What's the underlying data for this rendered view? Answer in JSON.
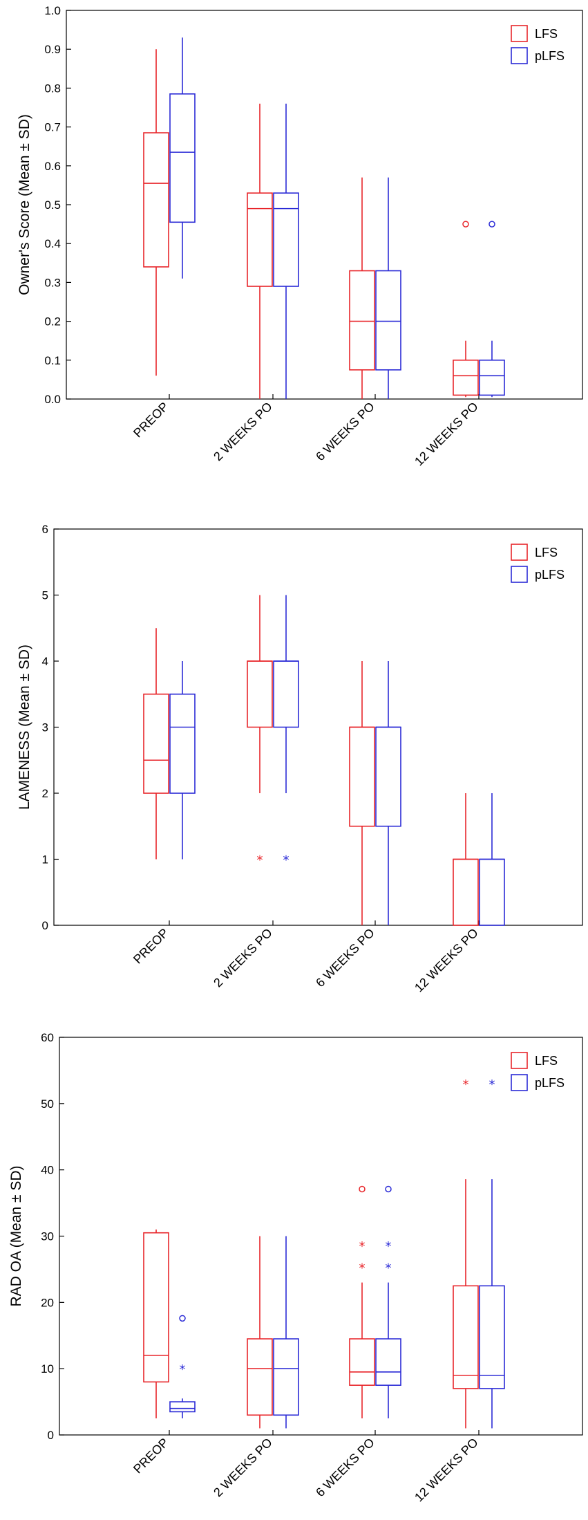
{
  "chart_data": [
    {
      "type": "boxplot",
      "ylabel": "Owner's Score (Mean ± SD)",
      "ylim": [
        0,
        1.0
      ],
      "yticks": [
        "0.0",
        "0.1",
        "0.2",
        "0.3",
        "0.4",
        "0.5",
        "0.6",
        "0.7",
        "0.8",
        "0.9",
        "1.0"
      ],
      "categories": [
        "PREOP",
        "2 WEEKS PO",
        "6 WEEKS PO",
        "12 WEEKS PO"
      ],
      "legend": {
        "position": "top-right",
        "entries": [
          "LFS",
          "pLFS"
        ]
      },
      "series": [
        {
          "name": "LFS",
          "color": "#e8262b",
          "boxes": [
            {
              "min": 0.06,
              "q1": 0.34,
              "median": 0.555,
              "q3": 0.685,
              "max": 0.9,
              "outliers": []
            },
            {
              "min": 0.0,
              "q1": 0.29,
              "median": 0.49,
              "q3": 0.53,
              "max": 0.76,
              "outliers": []
            },
            {
              "min": 0.0,
              "q1": 0.075,
              "median": 0.2,
              "q3": 0.33,
              "max": 0.57,
              "outliers": []
            },
            {
              "min": 0.005,
              "q1": 0.01,
              "median": 0.06,
              "q3": 0.1,
              "max": 0.15,
              "outliers": [
                {
                  "value": 0.45,
                  "symbol": "o"
                }
              ]
            }
          ]
        },
        {
          "name": "pLFS",
          "color": "#2b2bd6",
          "boxes": [
            {
              "min": 0.31,
              "q1": 0.455,
              "median": 0.635,
              "q3": 0.785,
              "max": 0.93,
              "outliers": []
            },
            {
              "min": 0.0,
              "q1": 0.29,
              "median": 0.49,
              "q3": 0.53,
              "max": 0.76,
              "outliers": []
            },
            {
              "min": 0.0,
              "q1": 0.075,
              "median": 0.2,
              "q3": 0.33,
              "max": 0.57,
              "outliers": []
            },
            {
              "min": 0.005,
              "q1": 0.01,
              "median": 0.06,
              "q3": 0.1,
              "max": 0.15,
              "outliers": [
                {
                  "value": 0.45,
                  "symbol": "o"
                }
              ]
            }
          ]
        }
      ]
    },
    {
      "type": "boxplot",
      "ylabel": "LAMENESS (Mean ± SD)",
      "ylim": [
        0,
        6
      ],
      "yticks": [
        "0",
        "1",
        "2",
        "3",
        "4",
        "5",
        "6"
      ],
      "categories": [
        "PREOP",
        "2 WEEKS PO",
        "6 WEEKS PO",
        "12 WEEKS PO"
      ],
      "legend": {
        "position": "top-right",
        "entries": [
          "LFS",
          "pLFS"
        ]
      },
      "series": [
        {
          "name": "LFS",
          "color": "#e8262b",
          "boxes": [
            {
              "min": 1,
              "q1": 2,
              "median": 2.5,
              "q3": 3.5,
              "max": 4.5,
              "outliers": []
            },
            {
              "min": 2,
              "q1": 3,
              "median": 4,
              "q3": 4,
              "max": 5,
              "outliers": [
                {
                  "value": 1,
                  "symbol": "*"
                }
              ]
            },
            {
              "min": 0,
              "q1": 1.5,
              "median": 3,
              "q3": 3,
              "max": 4,
              "outliers": []
            },
            {
              "min": 0,
              "q1": 0,
              "median": 1,
              "q3": 1,
              "max": 2,
              "outliers": []
            }
          ]
        },
        {
          "name": "pLFS",
          "color": "#2b2bd6",
          "boxes": [
            {
              "min": 1,
              "q1": 2,
              "median": 3,
              "q3": 3.5,
              "max": 4,
              "outliers": []
            },
            {
              "min": 2,
              "q1": 3,
              "median": 4,
              "q3": 4,
              "max": 5,
              "outliers": [
                {
                  "value": 1,
                  "symbol": "*"
                }
              ]
            },
            {
              "min": 0,
              "q1": 1.5,
              "median": 3,
              "q3": 3,
              "max": 4,
              "outliers": []
            },
            {
              "min": 0,
              "q1": 0,
              "median": 1,
              "q3": 1,
              "max": 2,
              "outliers": []
            }
          ]
        }
      ]
    },
    {
      "type": "boxplot",
      "ylabel": "RAD OA (Mean ± SD)",
      "ylim": [
        0,
        60
      ],
      "yticks": [
        "0",
        "10",
        "20",
        "30",
        "40",
        "50",
        "60"
      ],
      "categories": [
        "PREOP",
        "2 WEEKS PO",
        "6 WEEKS PO",
        "12 WEEKS PO"
      ],
      "legend": {
        "position": "top-right",
        "entries": [
          "LFS",
          "pLFS"
        ]
      },
      "series": [
        {
          "name": "LFS",
          "color": "#e8262b",
          "boxes": [
            {
              "min": 2.5,
              "q1": 8,
              "median": 12,
              "q3": 30.5,
              "max": 31,
              "outliers": []
            },
            {
              "min": 1,
              "q1": 3,
              "median": 10,
              "q3": 14.5,
              "max": 30,
              "outliers": []
            },
            {
              "min": 2.5,
              "q1": 7.5,
              "median": 9.5,
              "q3": 14.5,
              "max": 23,
              "outliers": [
                {
                  "value": 25.3,
                  "symbol": "*"
                },
                {
                  "value": 28.6,
                  "symbol": "*"
                },
                {
                  "value": 37.1,
                  "symbol": "o"
                }
              ]
            },
            {
              "min": 1,
              "q1": 7,
              "median": 9,
              "q3": 22.5,
              "max": 38.6,
              "outliers": [
                {
                  "value": 53,
                  "symbol": "*"
                }
              ]
            }
          ]
        },
        {
          "name": "pLFS",
          "color": "#2b2bd6",
          "boxes": [
            {
              "min": 2.5,
              "q1": 3.5,
              "median": 4,
              "q3": 5,
              "max": 5.5,
              "outliers": [
                {
                  "value": 10,
                  "symbol": "*"
                },
                {
                  "value": 17.6,
                  "symbol": "o"
                }
              ]
            },
            {
              "min": 1,
              "q1": 3,
              "median": 10,
              "q3": 14.5,
              "max": 30,
              "outliers": []
            },
            {
              "min": 2.5,
              "q1": 7.5,
              "median": 9.5,
              "q3": 14.5,
              "max": 23,
              "outliers": [
                {
                  "value": 25.3,
                  "symbol": "*"
                },
                {
                  "value": 28.6,
                  "symbol": "*"
                },
                {
                  "value": 37.1,
                  "symbol": "o"
                }
              ]
            },
            {
              "min": 1,
              "q1": 7,
              "median": 9,
              "q3": 22.5,
              "max": 38.6,
              "outliers": [
                {
                  "value": 53,
                  "symbol": "*"
                }
              ]
            }
          ]
        }
      ]
    }
  ]
}
